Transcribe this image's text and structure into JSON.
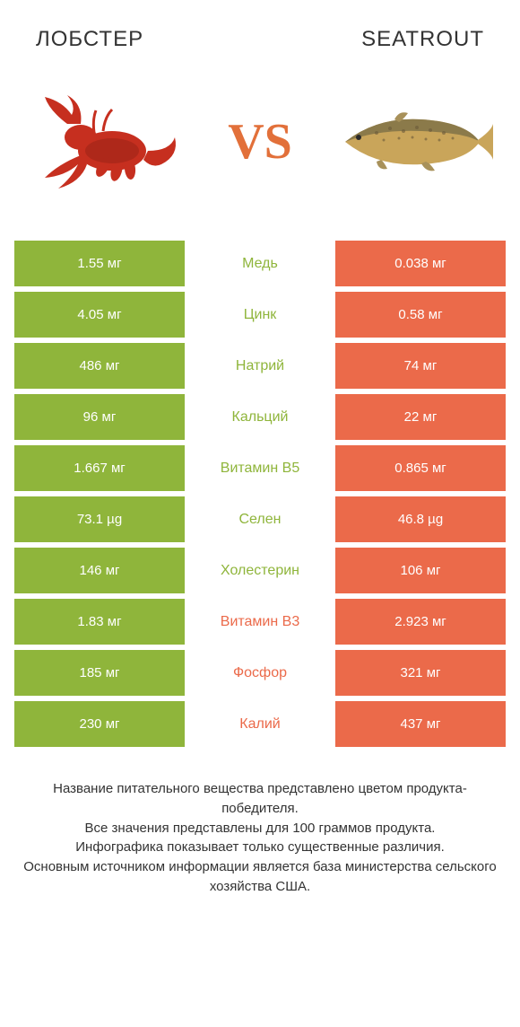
{
  "colors": {
    "green": "#8fb53b",
    "orange": "#eb6a4a",
    "green_text": "#8fb53b",
    "orange_text": "#eb6a4a",
    "neutral_bg": "#d9d9d9",
    "white": "#ffffff"
  },
  "header": {
    "left": "Лобстер",
    "right": "Seatrout",
    "vs": "VS"
  },
  "rows": [
    {
      "left": "1.55 мг",
      "mid": "Медь",
      "right": "0.038 мг",
      "winner": "left"
    },
    {
      "left": "4.05 мг",
      "mid": "Цинк",
      "right": "0.58 мг",
      "winner": "left"
    },
    {
      "left": "486 мг",
      "mid": "Натрий",
      "right": "74 мг",
      "winner": "left"
    },
    {
      "left": "96 мг",
      "mid": "Кальций",
      "right": "22 мг",
      "winner": "left"
    },
    {
      "left": "1.667 мг",
      "mid": "Витамин B5",
      "right": "0.865 мг",
      "winner": "left"
    },
    {
      "left": "73.1 µg",
      "mid": "Селен",
      "right": "46.8 µg",
      "winner": "left"
    },
    {
      "left": "146 мг",
      "mid": "Холестерин",
      "right": "106 мг",
      "winner": "left"
    },
    {
      "left": "1.83 мг",
      "mid": "Витамин B3",
      "right": "2.923 мг",
      "winner": "right"
    },
    {
      "left": "185 мг",
      "mid": "Фосфор",
      "right": "321 мг",
      "winner": "right"
    },
    {
      "left": "230 мг",
      "mid": "Калий",
      "right": "437 мг",
      "winner": "right"
    }
  ],
  "footer": {
    "line1": "Название питательного вещества представлено цветом продукта-победителя.",
    "line2": "Все значения представлены для 100 граммов продукта.",
    "line3": "Инфографика показывает только существенные различия.",
    "line4": "Основным источником информации является база министерства сельского хозяйства США."
  }
}
